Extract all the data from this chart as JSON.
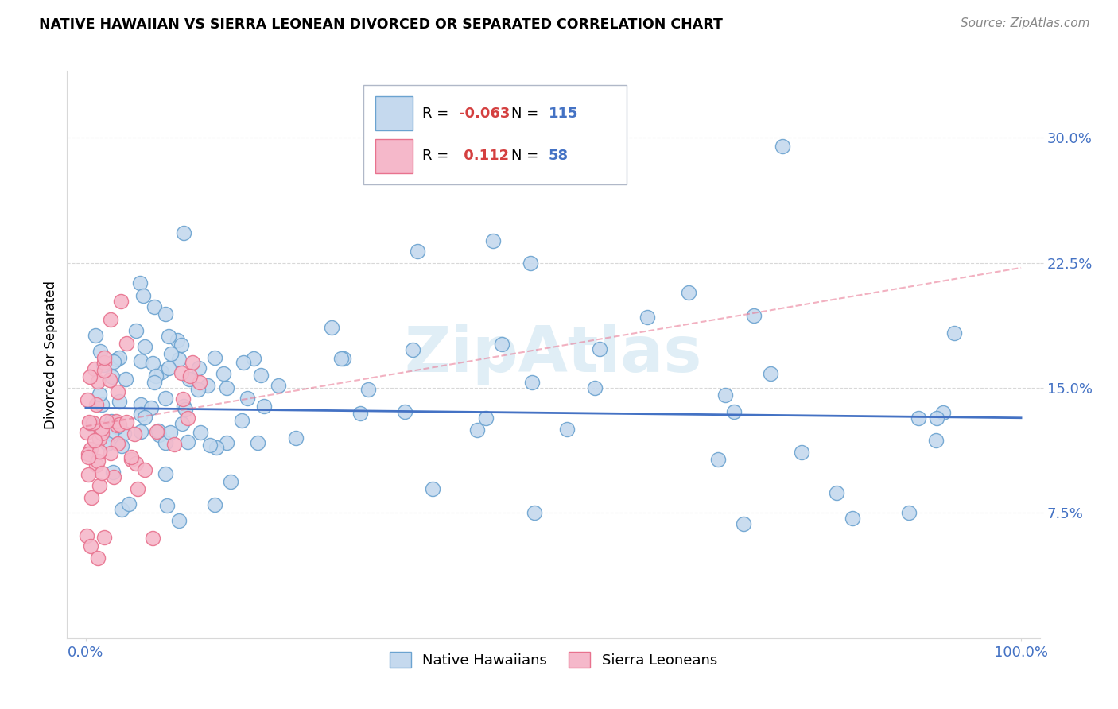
{
  "title": "NATIVE HAWAIIAN VS SIERRA LEONEAN DIVORCED OR SEPARATED CORRELATION CHART",
  "source": "Source: ZipAtlas.com",
  "ylabel": "Divorced or Separated",
  "x_tick_labels": [
    "0.0%",
    "100.0%"
  ],
  "y_tick_labels": [
    "7.5%",
    "15.0%",
    "22.5%",
    "30.0%"
  ],
  "legend_label1": "Native Hawaiians",
  "legend_label2": "Sierra Leoneans",
  "r1": "-0.063",
  "n1": "115",
  "r2": "0.112",
  "n2": "58",
  "blue_color": "#c5d9ee",
  "blue_edge": "#6ba3d0",
  "pink_color": "#f5b8ca",
  "pink_edge": "#e8728e",
  "trend_blue_color": "#4472c4",
  "trend_pink_color": "#e8728e",
  "watermark_color": "#cce4f0",
  "grid_color": "#d8d8d8",
  "ytick_color": "#4472c4",
  "source_color": "#888888",
  "legend_edge_color": "#b0b8c8",
  "blue_trend_start_y": 0.138,
  "blue_trend_slope": -0.006,
  "pink_trend_start_y": 0.127,
  "pink_trend_slope": 0.095,
  "xlim": [
    -0.02,
    1.02
  ],
  "ylim": [
    0.0,
    0.34
  ],
  "yticks": [
    0.075,
    0.15,
    0.225,
    0.3
  ]
}
